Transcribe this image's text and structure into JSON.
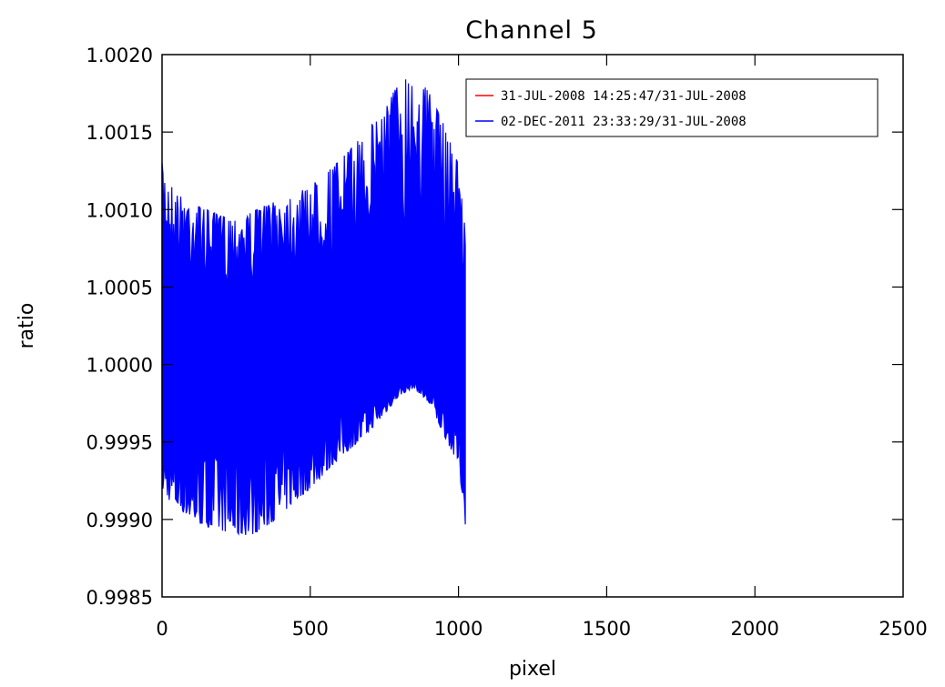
{
  "chart_data": {
    "type": "line",
    "title": "Channel 5",
    "xlabel": "pixel",
    "ylabel": "ratio",
    "xlim": [
      0,
      2500
    ],
    "ylim": [
      0.9985,
      1.002
    ],
    "x_ticks": [
      0,
      500,
      1000,
      1500,
      2000,
      2500
    ],
    "x_tick_labels": [
      "0",
      "500",
      "1000",
      "1500",
      "2000",
      "2500"
    ],
    "y_ticks": [
      0.9985,
      0.999,
      0.9995,
      1.0,
      1.0005,
      1.001,
      1.0015,
      1.002
    ],
    "y_tick_labels": [
      "0.9985",
      "0.9990",
      "0.9995",
      "1.0000",
      "1.0005",
      "1.0010",
      "1.0015",
      "1.0020"
    ],
    "grid": false,
    "legend_position": "top-right",
    "series": [
      {
        "name": "31-JUL-2008 14:25:47/31-JUL-2008",
        "color": "#ff0000",
        "x": [
          0,
          1024
        ],
        "y": [
          1.0,
          1.0
        ]
      },
      {
        "name": "02-DEC-2011 23:33:29/31-JUL-2008",
        "color": "#0000ff",
        "envelope": {
          "x": [
            0,
            10,
            50,
            100,
            150,
            200,
            250,
            300,
            350,
            400,
            450,
            500,
            550,
            600,
            650,
            700,
            750,
            800,
            850,
            900,
            950,
            1000,
            1010,
            1024
          ],
          "upper": [
            1.0013,
            1.00122,
            1.0011,
            1.00104,
            1.001,
            1.00096,
            1.00094,
            1.00098,
            1.00103,
            1.00106,
            1.0011,
            1.00115,
            1.00123,
            1.00132,
            1.00142,
            1.00153,
            1.00167,
            1.00182,
            1.00188,
            1.00176,
            1.00155,
            1.0013,
            1.0011,
            1.00085
          ],
          "lower": [
            0.9992,
            0.99915,
            0.99908,
            0.999,
            0.99895,
            0.99893,
            0.9989,
            0.9989,
            0.99895,
            0.99903,
            0.99912,
            0.9992,
            0.9993,
            0.9994,
            0.99948,
            0.99957,
            0.99968,
            0.9998,
            0.99985,
            0.99975,
            0.99955,
            0.99935,
            0.9992,
            0.99895
          ]
        }
      }
    ]
  }
}
